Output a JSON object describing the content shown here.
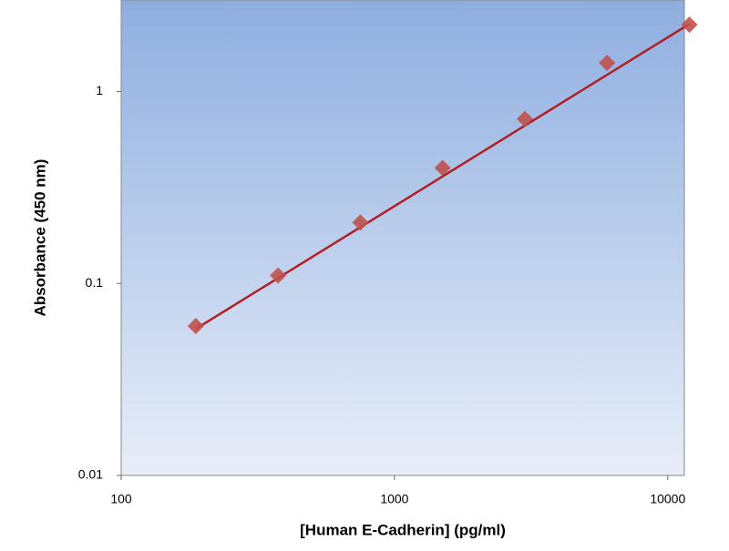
{
  "chart_data": {
    "type": "scatter",
    "x_label": "[Human E-Cadherin] (pg/ml)",
    "y_label": "Absorbance (450 nm)",
    "log_x": true,
    "log_y": true,
    "xlim": [
      100,
      11500
    ],
    "ylim": [
      0.01,
      3
    ],
    "xticks": [
      100,
      1000,
      10000
    ],
    "yticks": [
      0.01,
      0.1,
      1
    ],
    "series": [
      {
        "color": "#c0504d",
        "x": [
          187.5,
          375,
          750,
          1500,
          3000,
          6000,
          12000
        ],
        "values": [
          0.06,
          0.11,
          0.208,
          0.4,
          0.72,
          1.41,
          2.23
        ]
      }
    ],
    "fit_line": {
      "color": "#b01e23",
      "x": [
        187.5,
        12000
      ],
      "values": [
        0.058,
        2.25
      ]
    }
  }
}
